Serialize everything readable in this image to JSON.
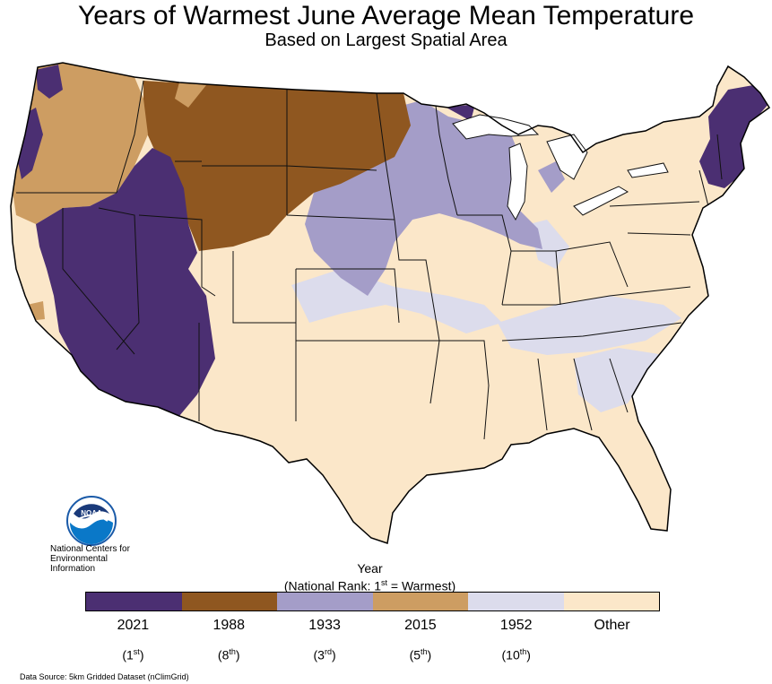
{
  "title": "Years of Warmest June Average Mean Temperature",
  "subtitle": "Based on Largest Spatial Area",
  "organization": [
    "National Centers for",
    "Environmental",
    "Information"
  ],
  "logo_text": "NOAA",
  "legend": {
    "title": "Year",
    "subtitle_pre": "(National Rank: 1",
    "subtitle_sup": "st",
    "subtitle_post": " = Warmest)",
    "items": [
      {
        "label": "2021",
        "rank_num": "(1",
        "rank_sup": "st",
        "rank_end": ")",
        "color": "#4b2f72"
      },
      {
        "label": "1988",
        "rank_num": "(8",
        "rank_sup": "th",
        "rank_end": ")",
        "color": "#8f5720"
      },
      {
        "label": "1933",
        "rank_num": "(3",
        "rank_sup": "rd",
        "rank_end": ")",
        "color": "#a49dc8"
      },
      {
        "label": "2015",
        "rank_num": "(5",
        "rank_sup": "th",
        "rank_end": ")",
        "color": "#cd9d62"
      },
      {
        "label": "1952",
        "rank_num": "(10",
        "rank_sup": "th",
        "rank_end": ")",
        "color": "#dcdcec"
      },
      {
        "label": "Other",
        "rank_num": "",
        "rank_sup": "",
        "rank_end": "",
        "color": "#fbe7c9"
      }
    ]
  },
  "source": "Data Source: 5km Gridded Dataset (nClimGrid)"
}
